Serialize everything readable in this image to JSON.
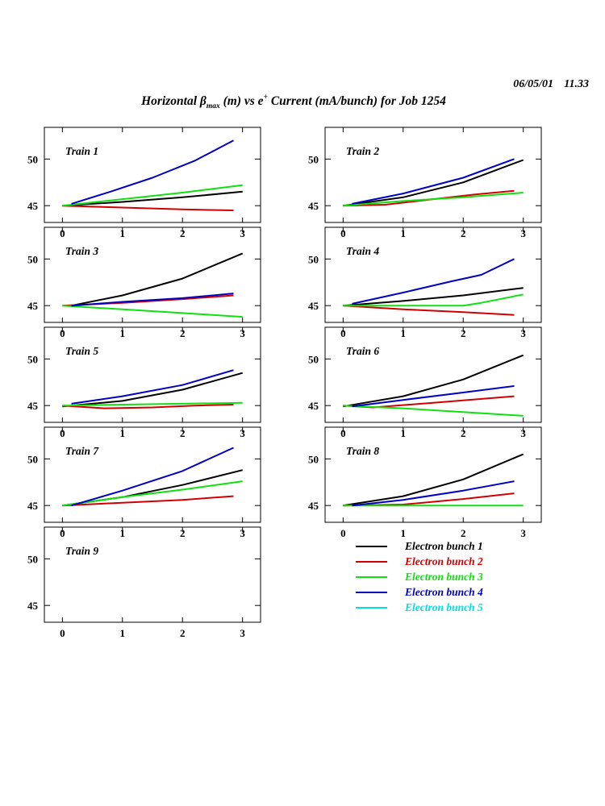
{
  "header": {
    "date": "06/05/01",
    "time": "11.33",
    "title_prefix": "Horizontal β",
    "title_sub": "max",
    "title_mid": " (m) vs e",
    "title_sup": "+",
    "title_suffix": " Current (mA/bunch) for Job 1254"
  },
  "chart_data": {
    "type": "line",
    "xlabel": "",
    "ylabel": "",
    "xlim": [
      -0.3,
      3.3
    ],
    "ylim": [
      43.2,
      53.4
    ],
    "xticks": [
      0,
      1,
      2,
      3
    ],
    "yticks": [
      45,
      50
    ],
    "colors": {
      "Electron bunch 1": "#000000",
      "Electron bunch 2": "#d00000",
      "Electron bunch 3": "#10e010",
      "Electron bunch 4": "#0000c0",
      "Electron bunch 5": "#00e0e0"
    },
    "legend": {
      "placement": "bottom-right",
      "entries": [
        "Electron bunch 1",
        "Electron bunch 2",
        "Electron bunch 3",
        "Electron bunch 4",
        "Electron bunch 5"
      ]
    },
    "panels": [
      {
        "title": "Train 1",
        "series": [
          {
            "name": "Electron bunch 1",
            "x": [
              0,
              1,
              2,
              3
            ],
            "y": [
              45.0,
              45.4,
              45.9,
              46.5
            ]
          },
          {
            "name": "Electron bunch 2",
            "x": [
              0,
              1,
              2,
              2.85
            ],
            "y": [
              45.0,
              44.8,
              44.6,
              44.5
            ]
          },
          {
            "name": "Electron bunch 3",
            "x": [
              0,
              1,
              2,
              3
            ],
            "y": [
              45.0,
              45.7,
              46.4,
              47.2
            ]
          },
          {
            "name": "Electron bunch 4",
            "x": [
              0.15,
              0.8,
              1.5,
              2.2,
              2.85
            ],
            "y": [
              45.2,
              46.5,
              48.0,
              49.8,
              52.0
            ]
          }
        ]
      },
      {
        "title": "Train 2",
        "series": [
          {
            "name": "Electron bunch 1",
            "x": [
              0,
              1,
              2,
              3
            ],
            "y": [
              45.0,
              45.9,
              47.5,
              49.9
            ]
          },
          {
            "name": "Electron bunch 2",
            "x": [
              0,
              0.7,
              1.5,
              2.2,
              2.85
            ],
            "y": [
              45.0,
              45.1,
              45.7,
              46.2,
              46.6
            ]
          },
          {
            "name": "Electron bunch 3",
            "x": [
              0,
              1,
              2,
              3
            ],
            "y": [
              45.0,
              45.5,
              45.9,
              46.4
            ]
          },
          {
            "name": "Electron bunch 4",
            "x": [
              0.15,
              1,
              2,
              2.85
            ],
            "y": [
              45.2,
              46.3,
              48.0,
              50.0
            ]
          }
        ]
      },
      {
        "title": "Train 3",
        "series": [
          {
            "name": "Electron bunch 1",
            "x": [
              0.15,
              1,
              2,
              3
            ],
            "y": [
              45.0,
              46.1,
              47.9,
              50.6
            ]
          },
          {
            "name": "Electron bunch 2",
            "x": [
              0,
              1,
              2,
              2.85
            ],
            "y": [
              45.0,
              45.3,
              45.7,
              46.1
            ]
          },
          {
            "name": "Electron bunch 3",
            "x": [
              0,
              1,
              2,
              3
            ],
            "y": [
              45.0,
              44.6,
              44.2,
              43.8
            ]
          },
          {
            "name": "Electron bunch 4",
            "x": [
              0.15,
              1,
              2,
              2.85
            ],
            "y": [
              45.0,
              45.4,
              45.8,
              46.3
            ]
          }
        ]
      },
      {
        "title": "Train 4",
        "series": [
          {
            "name": "Electron bunch 1",
            "x": [
              0,
              1,
              2,
              3
            ],
            "y": [
              45.0,
              45.5,
              46.1,
              46.9
            ]
          },
          {
            "name": "Electron bunch 2",
            "x": [
              0,
              1,
              2,
              2.85
            ],
            "y": [
              45.0,
              44.6,
              44.3,
              44.0
            ]
          },
          {
            "name": "Electron bunch 3",
            "x": [
              0,
              1,
              2,
              2.3,
              3
            ],
            "y": [
              45.0,
              45.0,
              45.0,
              45.3,
              46.2
            ]
          },
          {
            "name": "Electron bunch 4",
            "x": [
              0.15,
              1,
              1.8,
              2.3,
              2.85
            ],
            "y": [
              45.2,
              46.4,
              47.6,
              48.3,
              50.0
            ]
          }
        ]
      },
      {
        "title": "Train 5",
        "series": [
          {
            "name": "Electron bunch 1",
            "x": [
              0,
              1,
              2,
              3
            ],
            "y": [
              44.9,
              45.5,
              46.7,
              48.5
            ]
          },
          {
            "name": "Electron bunch 2",
            "x": [
              0,
              0.7,
              1.5,
              2.2,
              2.85
            ],
            "y": [
              45.0,
              44.7,
              44.8,
              45.0,
              45.1
            ]
          },
          {
            "name": "Electron bunch 3",
            "x": [
              0,
              1,
              2,
              3
            ],
            "y": [
              45.0,
              45.1,
              45.2,
              45.3
            ]
          },
          {
            "name": "Electron bunch 4",
            "x": [
              0.15,
              1,
              2,
              2.85
            ],
            "y": [
              45.2,
              46.0,
              47.2,
              48.8
            ]
          }
        ]
      },
      {
        "title": "Train 6",
        "series": [
          {
            "name": "Electron bunch 1",
            "x": [
              0,
              1,
              2,
              3
            ],
            "y": [
              44.9,
              46.0,
              47.8,
              50.4
            ]
          },
          {
            "name": "Electron bunch 2",
            "x": [
              0,
              0.5,
              1.5,
              2.85
            ],
            "y": [
              45.0,
              44.8,
              45.3,
              46.0
            ]
          },
          {
            "name": "Electron bunch 3",
            "x": [
              0,
              1,
              2,
              3
            ],
            "y": [
              45.0,
              44.7,
              44.3,
              43.9
            ]
          },
          {
            "name": "Electron bunch 4",
            "x": [
              0.15,
              1,
              2,
              2.85
            ],
            "y": [
              44.9,
              45.6,
              46.4,
              47.1
            ]
          }
        ]
      },
      {
        "title": "Train 7",
        "series": [
          {
            "name": "Electron bunch 1",
            "x": [
              0,
              1,
              2,
              3
            ],
            "y": [
              45.0,
              45.9,
              47.2,
              48.8
            ]
          },
          {
            "name": "Electron bunch 2",
            "x": [
              0,
              1,
              2,
              2.85
            ],
            "y": [
              45.0,
              45.3,
              45.6,
              46.0
            ]
          },
          {
            "name": "Electron bunch 3",
            "x": [
              0,
              1,
              2,
              3
            ],
            "y": [
              45.0,
              45.9,
              46.7,
              47.6
            ]
          },
          {
            "name": "Electron bunch 4",
            "x": [
              0.15,
              1,
              2,
              2.85
            ],
            "y": [
              45.0,
              46.6,
              48.7,
              51.2
            ]
          }
        ]
      },
      {
        "title": "Train 8",
        "series": [
          {
            "name": "Electron bunch 1",
            "x": [
              0,
              1,
              2,
              3
            ],
            "y": [
              45.0,
              46.0,
              47.8,
              50.5
            ]
          },
          {
            "name": "Electron bunch 2",
            "x": [
              0,
              1,
              2,
              2.85
            ],
            "y": [
              45.0,
              45.1,
              45.7,
              46.3
            ]
          },
          {
            "name": "Electron bunch 3",
            "x": [
              0,
              1,
              2,
              3
            ],
            "y": [
              45.0,
              45.0,
              45.0,
              45.0
            ]
          },
          {
            "name": "Electron bunch 4",
            "x": [
              0.15,
              1,
              2,
              2.85
            ],
            "y": [
              45.0,
              45.6,
              46.6,
              47.6
            ]
          }
        ]
      },
      {
        "title": "Train 9",
        "series": []
      }
    ]
  }
}
